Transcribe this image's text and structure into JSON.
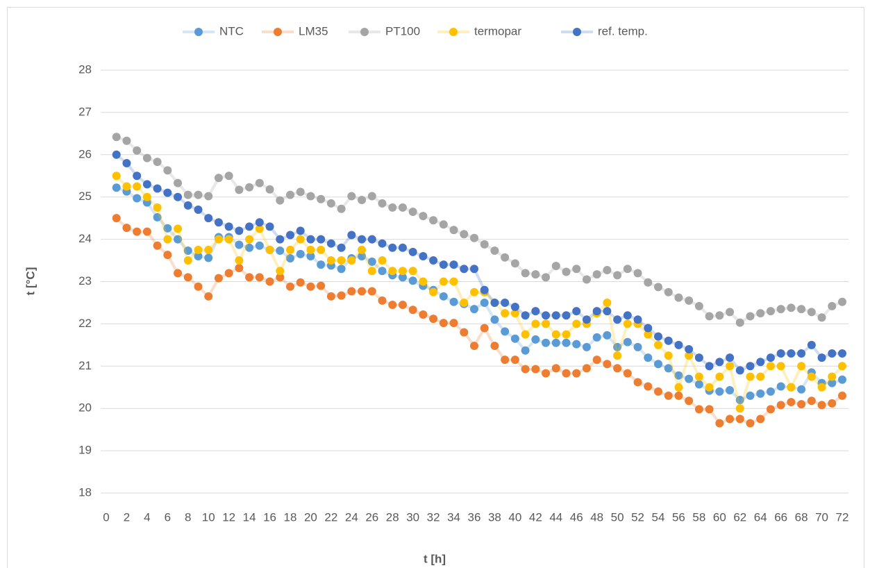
{
  "chart_data": {
    "type": "line",
    "xlabel": "t [h]",
    "ylabel": "t [°C]",
    "x": [
      1,
      2,
      3,
      4,
      5,
      6,
      7,
      8,
      9,
      10,
      11,
      12,
      13,
      14,
      15,
      16,
      17,
      18,
      19,
      20,
      21,
      22,
      23,
      24,
      25,
      26,
      27,
      28,
      29,
      30,
      31,
      32,
      33,
      34,
      35,
      36,
      37,
      38,
      39,
      40,
      41,
      42,
      43,
      44,
      45,
      46,
      47,
      48,
      49,
      50,
      51,
      52,
      53,
      54,
      55,
      56,
      57,
      58,
      59,
      60,
      61,
      62,
      63,
      64,
      65,
      66,
      67,
      68,
      69,
      70,
      71,
      72
    ],
    "xlim": [
      0,
      72
    ],
    "xticks": [
      0,
      2,
      4,
      6,
      8,
      10,
      12,
      14,
      16,
      18,
      20,
      22,
      24,
      26,
      28,
      30,
      32,
      34,
      36,
      38,
      40,
      42,
      44,
      46,
      48,
      50,
      52,
      54,
      56,
      58,
      60,
      62,
      64,
      66,
      68,
      70,
      72
    ],
    "ylim": [
      18,
      28
    ],
    "yticks": [
      18,
      19,
      20,
      21,
      22,
      23,
      24,
      25,
      26,
      27,
      28
    ],
    "grid": true,
    "legend": "top",
    "series": [
      {
        "name": "NTC",
        "color": "#5b9bd5",
        "values": [
          25.22,
          25.13,
          24.97,
          24.87,
          24.52,
          24.26,
          24.0,
          23.73,
          23.6,
          23.56,
          24.05,
          24.05,
          23.87,
          23.8,
          23.85,
          23.75,
          23.73,
          23.55,
          23.65,
          23.6,
          23.4,
          23.38,
          23.3,
          23.55,
          23.6,
          23.47,
          23.25,
          23.15,
          23.1,
          23.02,
          22.9,
          22.8,
          22.65,
          22.52,
          22.47,
          22.35,
          22.5,
          22.1,
          21.82,
          21.65,
          21.37,
          21.63,
          21.55,
          21.55,
          21.55,
          21.52,
          21.45,
          21.68,
          21.73,
          21.45,
          21.57,
          21.45,
          21.2,
          21.05,
          20.95,
          20.78,
          20.7,
          20.57,
          20.42,
          20.4,
          20.43,
          20.2,
          20.3,
          20.35,
          20.4,
          20.52,
          20.5,
          20.45,
          20.85,
          20.6,
          20.6,
          20.68
        ]
      },
      {
        "name": "LM35",
        "color": "#ed7d31",
        "values": [
          24.5,
          24.27,
          24.18,
          24.18,
          23.85,
          23.63,
          23.2,
          23.1,
          22.88,
          22.65,
          23.08,
          23.2,
          23.32,
          23.1,
          23.1,
          23.0,
          23.1,
          22.88,
          22.98,
          22.88,
          22.9,
          22.65,
          22.67,
          22.77,
          22.77,
          22.77,
          22.55,
          22.45,
          22.45,
          22.33,
          22.22,
          22.12,
          22.02,
          22.02,
          21.8,
          21.48,
          21.9,
          21.48,
          21.15,
          21.15,
          20.93,
          20.93,
          20.83,
          20.95,
          20.83,
          20.83,
          20.95,
          21.15,
          21.05,
          20.95,
          20.83,
          20.62,
          20.52,
          20.4,
          20.3,
          20.3,
          20.18,
          19.98,
          19.98,
          19.65,
          19.75,
          19.75,
          19.65,
          19.75,
          19.98,
          20.08,
          20.15,
          20.1,
          20.18,
          20.08,
          20.12,
          20.3
        ]
      },
      {
        "name": "PT100",
        "color": "#a5a5a5",
        "values": [
          26.42,
          26.33,
          26.1,
          25.92,
          25.83,
          25.63,
          25.33,
          25.05,
          25.05,
          25.02,
          25.45,
          25.5,
          25.17,
          25.23,
          25.33,
          25.18,
          24.92,
          25.05,
          25.12,
          25.02,
          24.95,
          24.85,
          24.72,
          25.02,
          24.93,
          25.02,
          24.85,
          24.75,
          24.75,
          24.65,
          24.55,
          24.45,
          24.35,
          24.22,
          24.12,
          24.03,
          23.88,
          23.73,
          23.57,
          23.43,
          23.2,
          23.17,
          23.1,
          23.37,
          23.23,
          23.3,
          23.05,
          23.17,
          23.27,
          23.15,
          23.3,
          23.2,
          22.98,
          22.87,
          22.75,
          22.62,
          22.55,
          22.42,
          22.18,
          22.2,
          22.28,
          22.03,
          22.18,
          22.25,
          22.3,
          22.35,
          22.38,
          22.35,
          22.28,
          22.15,
          22.42,
          22.52
        ]
      },
      {
        "name": "termopar",
        "color": "#ffc000",
        "values": [
          25.5,
          25.25,
          25.25,
          25.0,
          24.75,
          24.0,
          24.25,
          23.5,
          23.75,
          23.75,
          24.0,
          24.0,
          23.5,
          24.0,
          24.25,
          23.75,
          23.25,
          23.75,
          24.0,
          23.75,
          23.75,
          23.5,
          23.5,
          23.5,
          23.75,
          23.25,
          23.5,
          23.25,
          23.25,
          23.25,
          23.0,
          22.75,
          23.0,
          23.0,
          22.5,
          22.75,
          22.75,
          22.5,
          22.25,
          22.25,
          21.75,
          22.0,
          22.0,
          21.75,
          21.75,
          22.0,
          22.0,
          22.25,
          22.5,
          21.25,
          22.0,
          22.0,
          21.75,
          21.5,
          21.25,
          20.5,
          21.25,
          20.75,
          20.5,
          20.75,
          21.0,
          20.0,
          20.75,
          20.75,
          21.0,
          21.0,
          20.5,
          21.0,
          20.75,
          20.5,
          20.75,
          21.0
        ]
      },
      {
        "name": "ref. temp.",
        "color": "#4472c4",
        "values": [
          26.0,
          25.8,
          25.5,
          25.3,
          25.2,
          25.1,
          25.0,
          24.8,
          24.7,
          24.5,
          24.4,
          24.3,
          24.2,
          24.3,
          24.4,
          24.3,
          24.0,
          24.1,
          24.2,
          24.0,
          24.0,
          23.9,
          23.8,
          24.1,
          24.0,
          24.0,
          23.9,
          23.8,
          23.8,
          23.7,
          23.6,
          23.5,
          23.4,
          23.4,
          23.3,
          23.3,
          22.8,
          22.5,
          22.5,
          22.4,
          22.2,
          22.3,
          22.2,
          22.2,
          22.2,
          22.3,
          22.1,
          22.3,
          22.3,
          22.1,
          22.2,
          22.1,
          21.9,
          21.7,
          21.6,
          21.5,
          21.4,
          21.2,
          21.0,
          21.1,
          21.2,
          20.9,
          21.0,
          21.1,
          21.2,
          21.3,
          21.3,
          21.3,
          21.5,
          21.2,
          21.3,
          21.3
        ]
      }
    ]
  }
}
